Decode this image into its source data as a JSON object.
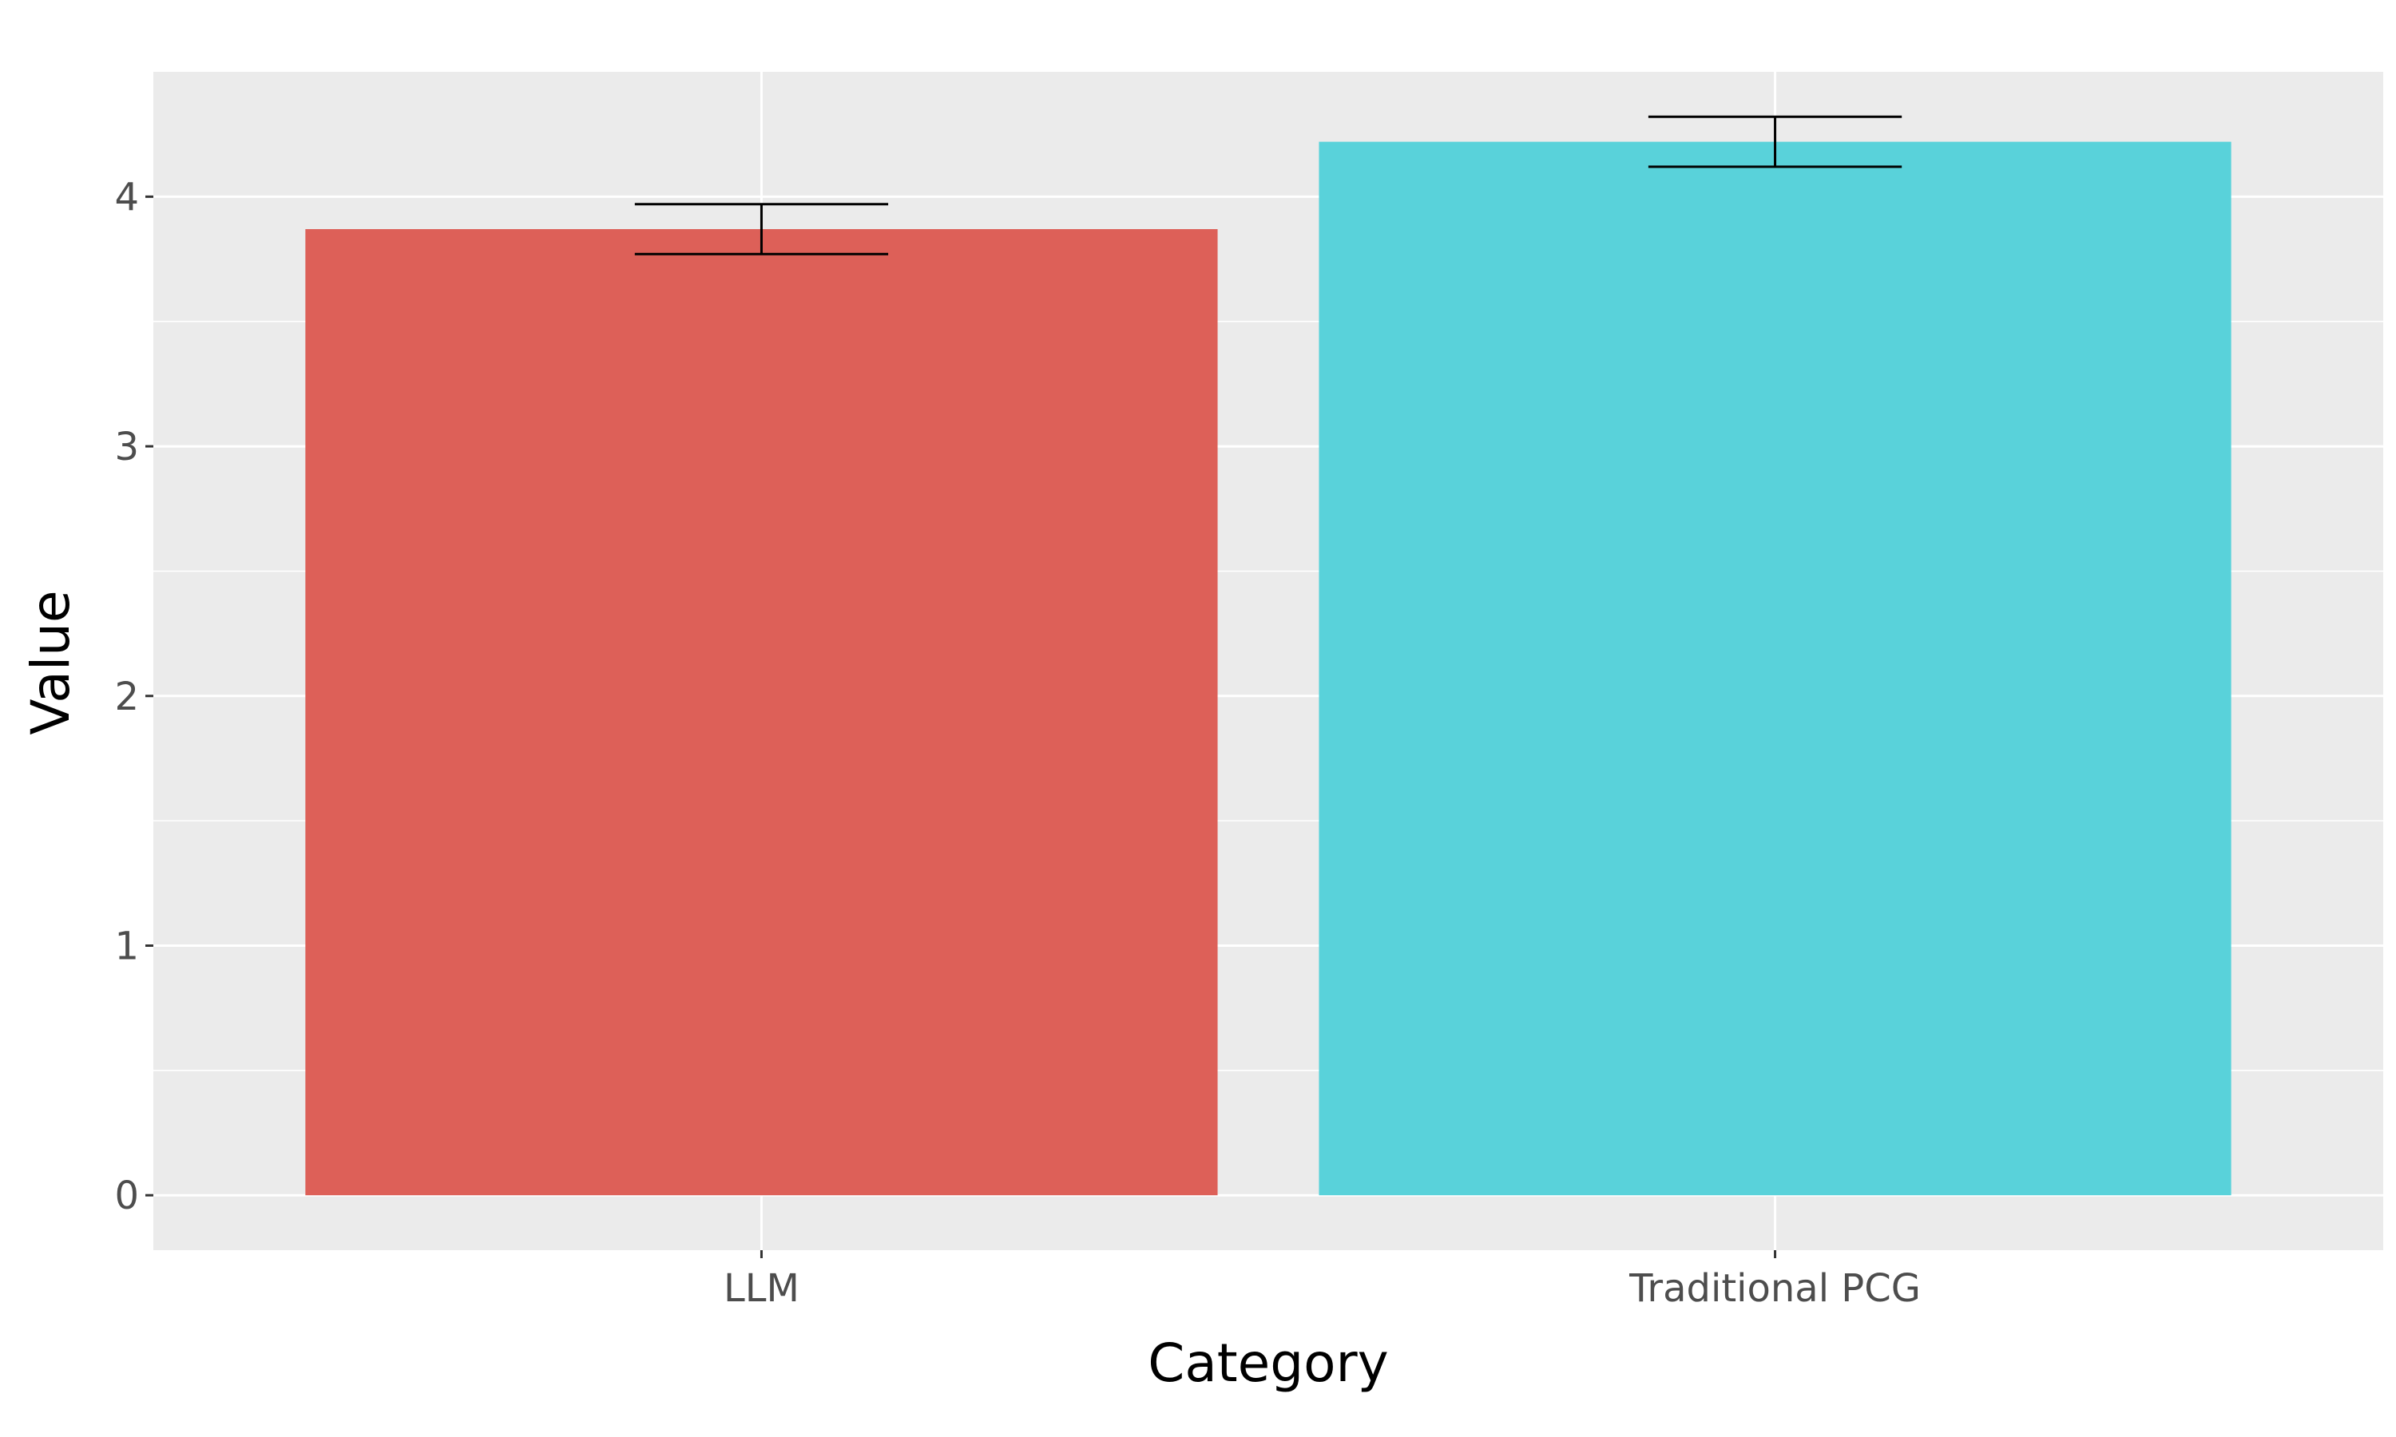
{
  "chart_data": {
    "type": "bar",
    "title": "",
    "xlabel": "Category",
    "ylabel": "Value",
    "categories": [
      "LLM",
      "Traditional PCG"
    ],
    "values": [
      3.87,
      4.22
    ],
    "error_bars": [
      {
        "lower": 3.77,
        "upper": 3.97
      },
      {
        "lower": 4.12,
        "upper": 4.32
      }
    ],
    "bar_colors": [
      "#dd6058",
      "#59d2da"
    ],
    "ylim": [
      -0.22,
      4.5
    ],
    "yticks": [
      0,
      1,
      2,
      3,
      4
    ],
    "ytick_labels": [
      "0",
      "1",
      "2",
      "3",
      "4"
    ],
    "grid": true,
    "legend": "none",
    "panel_background": "#ebebeb",
    "grid_color": "#ffffff"
  }
}
